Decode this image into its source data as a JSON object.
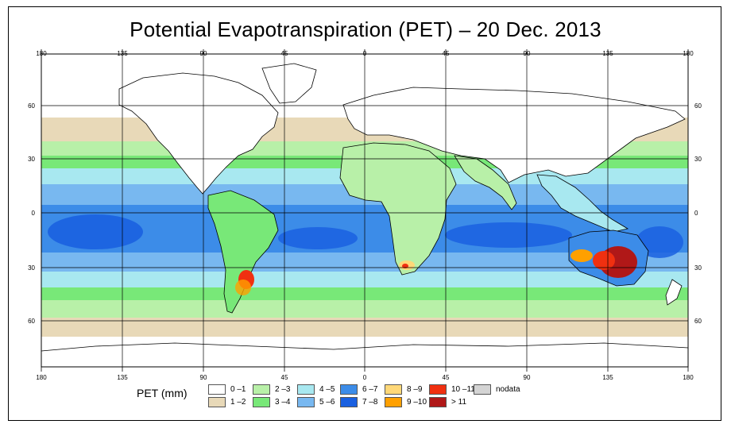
{
  "title": "Potential Evapotranspiration (PET) – 20 Dec. 2013",
  "map": {
    "lon_ticks": [
      "180",
      "135",
      "90",
      "45",
      "0",
      "45",
      "90",
      "135",
      "180"
    ],
    "lat_ticks": [
      "60",
      "30",
      "0",
      "30",
      "60"
    ]
  },
  "legend": {
    "label": "PET (mm)",
    "items": [
      {
        "label": "0 –1",
        "color": "#ffffff"
      },
      {
        "label": "1 –2",
        "color": "#e8d9b8"
      },
      {
        "label": "2 –3",
        "color": "#b8f0a8"
      },
      {
        "label": "3 –4",
        "color": "#78e878"
      },
      {
        "label": "4 –5",
        "color": "#a8e8f0"
      },
      {
        "label": "5 –6",
        "color": "#78b8f0"
      },
      {
        "label": "6 –7",
        "color": "#3c8ce8"
      },
      {
        "label": "7 –8",
        "color": "#1a60e0"
      },
      {
        "label": "8 –9",
        "color": "#ffd878"
      },
      {
        "label": "9 –10",
        "color": "#ffa000"
      },
      {
        "label": "10 –11",
        "color": "#f03010"
      },
      {
        "label": "> 11",
        "color": "#b01818"
      },
      {
        "label": "nodata",
        "color": "#d4d4d4"
      }
    ]
  }
}
